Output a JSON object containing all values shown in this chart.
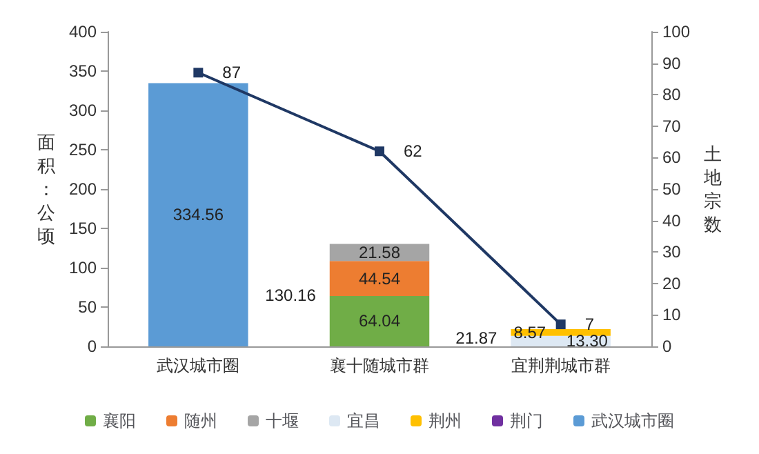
{
  "chart_data": {
    "type": "bar",
    "stacked": true,
    "categories": [
      "武汉城市圈",
      "襄十随城市群",
      "宜荆荆城市群"
    ],
    "ylabel": "面积：公顷",
    "y2label": "土地宗数",
    "ylim": [
      0,
      400
    ],
    "yticks": [
      0,
      50,
      100,
      150,
      200,
      250,
      300,
      350,
      400
    ],
    "y2lim": [
      0,
      100
    ],
    "y2ticks": [
      0,
      10,
      20,
      30,
      40,
      50,
      60,
      70,
      80,
      90,
      100
    ],
    "grid": false,
    "legend": "bottom",
    "data_labels": true,
    "totals": [
      null,
      "130.16",
      "21.87"
    ],
    "series": [
      {
        "name": "襄阳",
        "color": "#70ad47",
        "values": [
          null,
          64.04,
          null
        ]
      },
      {
        "name": "随州",
        "color": "#ed7d31",
        "values": [
          null,
          44.54,
          null
        ]
      },
      {
        "name": "十堰",
        "color": "#a5a5a5",
        "values": [
          null,
          21.58,
          null
        ]
      },
      {
        "name": "宜昌",
        "color": "#dde8f3",
        "values": [
          null,
          null,
          13.3
        ],
        "value_labels": [
          null,
          null,
          "13.30"
        ]
      },
      {
        "name": "荆州",
        "color": "#ffc000",
        "values": [
          null,
          null,
          8.57
        ]
      },
      {
        "name": "荆门",
        "color": "#7030a0",
        "values": [
          null,
          null,
          null
        ]
      },
      {
        "name": "武汉城市圈",
        "color": "#5b9bd5",
        "values": [
          334.56,
          null,
          null
        ]
      },
      {
        "type": "line",
        "axis": "y2",
        "color": "#1f3864",
        "marker": "square",
        "line_style": "solid",
        "values": [
          87,
          62,
          7
        ]
      }
    ]
  }
}
